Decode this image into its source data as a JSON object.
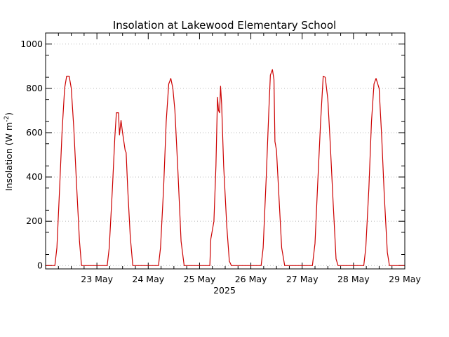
{
  "chart_data": {
    "type": "line",
    "title": "Insolation at Lakewood Elementary School",
    "ylabel_main": "Insolation (W m",
    "ylabel_sup": "-2",
    "ylabel_close": ")",
    "xlabel": "2025",
    "x_unit": "day (0 = 22 May 00:00)",
    "xlim": [
      0,
      7.0
    ],
    "ylim": [
      -15,
      1050
    ],
    "yticks": [
      0,
      200,
      400,
      600,
      800,
      1000
    ],
    "xticks": [
      {
        "x": 1,
        "label": "23 May"
      },
      {
        "x": 2,
        "label": "24 May"
      },
      {
        "x": 3,
        "label": "25 May"
      },
      {
        "x": 4,
        "label": "26 May"
      },
      {
        "x": 5,
        "label": "27 May"
      },
      {
        "x": 6,
        "label": "28 May"
      },
      {
        "x": 7,
        "label": "29 May"
      }
    ],
    "grid": "horizontal dotted",
    "series": [
      {
        "color": "#cc0000",
        "points": [
          [
            0.0,
            0
          ],
          [
            0.1,
            0
          ],
          [
            0.18,
            0
          ],
          [
            0.22,
            80
          ],
          [
            0.27,
            330
          ],
          [
            0.32,
            600
          ],
          [
            0.37,
            800
          ],
          [
            0.41,
            855
          ],
          [
            0.46,
            855
          ],
          [
            0.5,
            800
          ],
          [
            0.55,
            620
          ],
          [
            0.6,
            380
          ],
          [
            0.66,
            110
          ],
          [
            0.7,
            0
          ],
          [
            0.8,
            0
          ],
          [
            1.0,
            0
          ],
          [
            1.2,
            0
          ],
          [
            1.24,
            80
          ],
          [
            1.3,
            340
          ],
          [
            1.35,
            580
          ],
          [
            1.38,
            690
          ],
          [
            1.42,
            690
          ],
          [
            1.44,
            590
          ],
          [
            1.47,
            655
          ],
          [
            1.5,
            600
          ],
          [
            1.55,
            520
          ],
          [
            1.57,
            510
          ],
          [
            1.6,
            350
          ],
          [
            1.65,
            130
          ],
          [
            1.7,
            0
          ],
          [
            1.8,
            0
          ],
          [
            2.0,
            0
          ],
          [
            2.2,
            0
          ],
          [
            2.24,
            80
          ],
          [
            2.3,
            350
          ],
          [
            2.35,
            650
          ],
          [
            2.4,
            820
          ],
          [
            2.44,
            845
          ],
          [
            2.48,
            800
          ],
          [
            2.52,
            700
          ],
          [
            2.58,
            420
          ],
          [
            2.64,
            110
          ],
          [
            2.7,
            0
          ],
          [
            2.8,
            0
          ],
          [
            3.0,
            0
          ],
          [
            3.15,
            0
          ],
          [
            3.2,
            0
          ],
          [
            3.22,
            120
          ],
          [
            3.25,
            160
          ],
          [
            3.28,
            200
          ],
          [
            3.32,
            450
          ],
          [
            3.35,
            760
          ],
          [
            3.37,
            700
          ],
          [
            3.39,
            690
          ],
          [
            3.41,
            810
          ],
          [
            3.43,
            730
          ],
          [
            3.47,
            450
          ],
          [
            3.53,
            180
          ],
          [
            3.58,
            20
          ],
          [
            3.62,
            0
          ],
          [
            3.8,
            0
          ],
          [
            4.0,
            0
          ],
          [
            4.2,
            0
          ],
          [
            4.24,
            80
          ],
          [
            4.3,
            400
          ],
          [
            4.35,
            700
          ],
          [
            4.38,
            860
          ],
          [
            4.42,
            885
          ],
          [
            4.45,
            840
          ],
          [
            4.47,
            560
          ],
          [
            4.5,
            520
          ],
          [
            4.55,
            300
          ],
          [
            4.6,
            80
          ],
          [
            4.66,
            0
          ],
          [
            4.8,
            0
          ],
          [
            5.0,
            0
          ],
          [
            5.2,
            0
          ],
          [
            5.25,
            100
          ],
          [
            5.3,
            360
          ],
          [
            5.36,
            650
          ],
          [
            5.41,
            855
          ],
          [
            5.45,
            850
          ],
          [
            5.5,
            750
          ],
          [
            5.55,
            540
          ],
          [
            5.6,
            300
          ],
          [
            5.66,
            30
          ],
          [
            5.7,
            0
          ],
          [
            5.8,
            0
          ],
          [
            6.0,
            0
          ],
          [
            6.2,
            0
          ],
          [
            6.24,
            80
          ],
          [
            6.3,
            350
          ],
          [
            6.35,
            650
          ],
          [
            6.4,
            820
          ],
          [
            6.44,
            845
          ],
          [
            6.5,
            800
          ],
          [
            6.55,
            580
          ],
          [
            6.6,
            320
          ],
          [
            6.66,
            60
          ],
          [
            6.7,
            0
          ],
          [
            6.8,
            0
          ],
          [
            6.92,
            0
          ],
          [
            7.0,
            0
          ]
        ]
      }
    ]
  }
}
